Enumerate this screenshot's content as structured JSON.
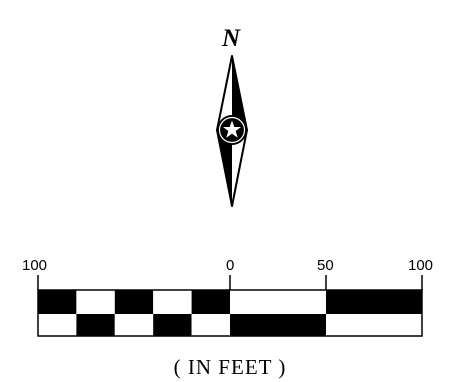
{
  "north_arrow": {
    "letter": "N",
    "icon": "north-arrow-icon",
    "center_icon": "star-icon"
  },
  "scale_bar": {
    "tick_labels": [
      "100",
      "0",
      "50",
      "100"
    ],
    "unit_label": "( IN FEET )",
    "colors": {
      "dark": "#000000",
      "light": "#ffffff"
    }
  }
}
